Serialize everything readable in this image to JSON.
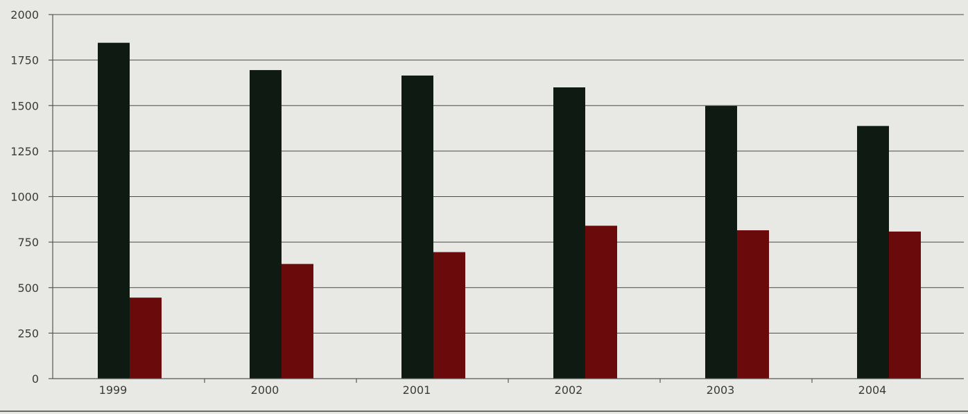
{
  "chart_data": {
    "type": "bar",
    "categories": [
      "1999",
      "2000",
      "2001",
      "2002",
      "2003",
      "2004"
    ],
    "series": [
      {
        "values": [
          1845,
          1695,
          1665,
          1600,
          1498,
          1388
        ],
        "color": "#0f1a12"
      },
      {
        "values": [
          445,
          630,
          695,
          840,
          815,
          808
        ],
        "color": "#6b0a0a"
      }
    ],
    "y_ticks": [
      "0",
      "250",
      "500",
      "750",
      "1000",
      "1250",
      "1500",
      "1750",
      "2000"
    ],
    "ylim": [
      0,
      2000
    ],
    "grid": true,
    "legend": "none",
    "title": "",
    "xlabel": "",
    "ylabel": ""
  }
}
